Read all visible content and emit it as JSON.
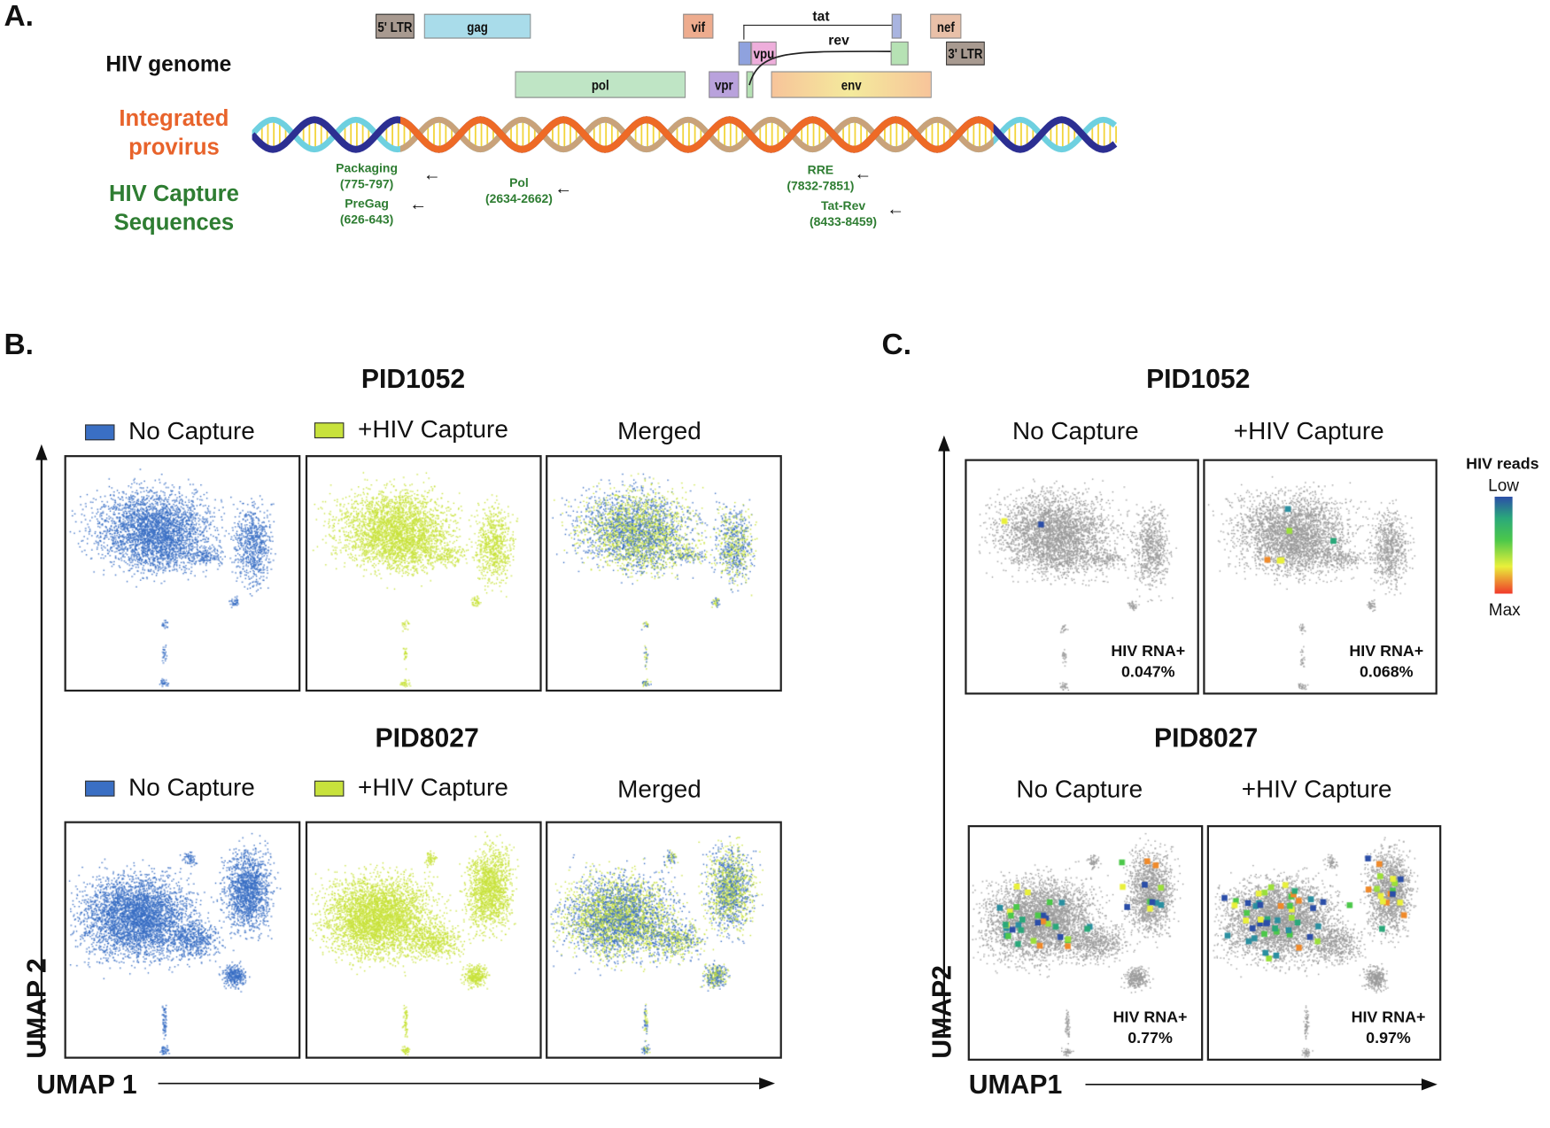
{
  "panel_a": {
    "letter": "A.",
    "hiv_genome_label": "HIV genome",
    "provirus_label": [
      "Integrated",
      "provirus"
    ],
    "capture_label": [
      "HIV Capture",
      "Sequences"
    ],
    "genes": {
      "ltr5": "5' LTR",
      "gag": "gag",
      "vif": "vif",
      "tat": "tat",
      "nef": "nef",
      "vpu": "vpu",
      "rev": "rev",
      "ltr3": "3' LTR",
      "pol": "pol",
      "vpr": "vpr",
      "env": "env"
    },
    "capture_sequences": [
      {
        "name": "Packaging",
        "range": "(775-797)"
      },
      {
        "name": "PreGag",
        "range": "(626-643)"
      },
      {
        "name": "Pol",
        "range": "(2634-2662)"
      },
      {
        "name": "RRE",
        "range": "(7832-7851)"
      },
      {
        "name": "Tat-Rev",
        "range": "(8433-8459)"
      }
    ],
    "colors": {
      "orange": "#e8632b",
      "green": "#2e7d32"
    }
  },
  "panel_b": {
    "letter": "B.",
    "rows": [
      {
        "title": "PID1052",
        "legend": [
          "No Capture",
          "+HIV Capture",
          "Merged"
        ]
      },
      {
        "title": "PID8027",
        "legend": [
          "No Capture",
          "+HIV Capture",
          "Merged"
        ]
      }
    ],
    "x_axis": "UMAP 1",
    "y_axis": "UMAP 2",
    "colors": {
      "no_capture": "#3a6fc4",
      "hiv_capture": "#c8e23c"
    }
  },
  "panel_c": {
    "letter": "C.",
    "rows": [
      {
        "title": "PID1052",
        "columns": [
          "No Capture",
          "+HIV Capture"
        ],
        "hiv_rna_label": "HIV RNA+",
        "values": [
          "0.047%",
          "0.068%"
        ]
      },
      {
        "title": "PID8027",
        "columns": [
          "No Capture",
          "+HIV Capture"
        ],
        "hiv_rna_label": "HIV RNA+",
        "values": [
          "0.77%",
          "0.97%"
        ]
      }
    ],
    "colorbar": {
      "title": "HIV reads",
      "low": "Low",
      "max": "Max"
    },
    "x_axis": "UMAP1",
    "y_axis": "UMAP2"
  }
}
